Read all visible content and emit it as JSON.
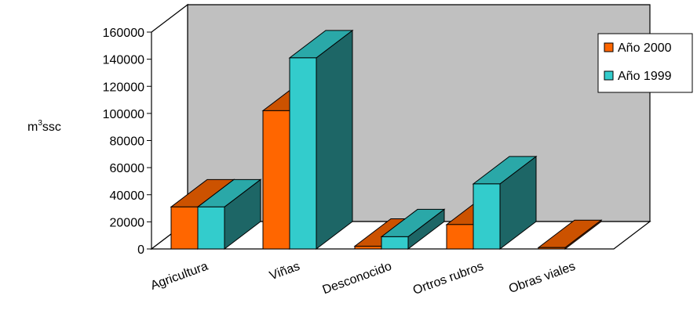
{
  "chart_data": {
    "type": "bar",
    "title": "",
    "xlabel": "",
    "ylabel": "m³ssc",
    "ylabel_base": "m",
    "ylabel_sup": "3",
    "ylabel_rest": "ssc",
    "categories": [
      "Agricultura",
      "Viñas",
      "Desconocido",
      "Ortros rubros",
      "Obras viales"
    ],
    "series": [
      {
        "name": "Año 2000",
        "values": [
          31000,
          102000,
          2000,
          18000,
          1000
        ]
      },
      {
        "name": "Año 1999",
        "values": [
          31000,
          141000,
          9000,
          48000,
          0
        ]
      }
    ],
    "ylim": [
      0,
      160000
    ],
    "yticks": [
      "0",
      "20000",
      "40000",
      "60000",
      "80000",
      "100000",
      "120000",
      "140000",
      "160000"
    ],
    "legend_position": "top-right",
    "grid": false,
    "style": "3d-clustered-column"
  },
  "colors": {
    "series_2000_front": "#ff6600",
    "series_2000_top": "#cc5200",
    "series_2000_side": "#c04a00",
    "series_1999_front": "#33cccc",
    "series_1999_top": "#2aa8a8",
    "series_1999_side": "#1d6666",
    "back_wall": "#c0c0c0",
    "floor": "#ffffff"
  }
}
